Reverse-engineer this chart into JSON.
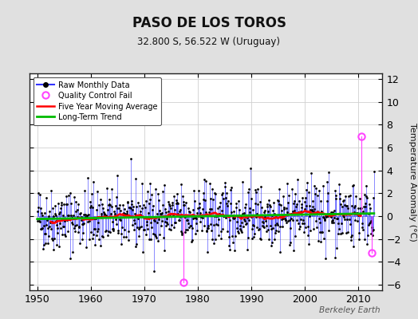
{
  "title": "PASO DE LOS TOROS",
  "subtitle": "32.800 S, 56.522 W (Uruguay)",
  "ylabel": "Temperature Anomaly (°C)",
  "xlabel_ticks": [
    1950,
    1960,
    1970,
    1980,
    1990,
    2000,
    2010
  ],
  "ylim": [
    -6.5,
    12.5
  ],
  "xlim": [
    1948.5,
    2014.5
  ],
  "yticks": [
    -6,
    -4,
    -2,
    0,
    2,
    4,
    6,
    8,
    10,
    12
  ],
  "background_color": "#e0e0e0",
  "plot_bg_color": "#ffffff",
  "raw_line_color": "#3333ff",
  "raw_marker_color": "#000000",
  "ma_color": "#ff0000",
  "trend_color": "#00bb00",
  "qc_fail_color": "#ff44ff",
  "watermark": "Berkeley Earth",
  "seed": 42,
  "n_months": 756,
  "start_year": 1950.0,
  "qc_fail_points": [
    [
      1977.25,
      -5.8
    ],
    [
      2010.5,
      7.0
    ],
    [
      2012.5,
      -3.2
    ]
  ]
}
